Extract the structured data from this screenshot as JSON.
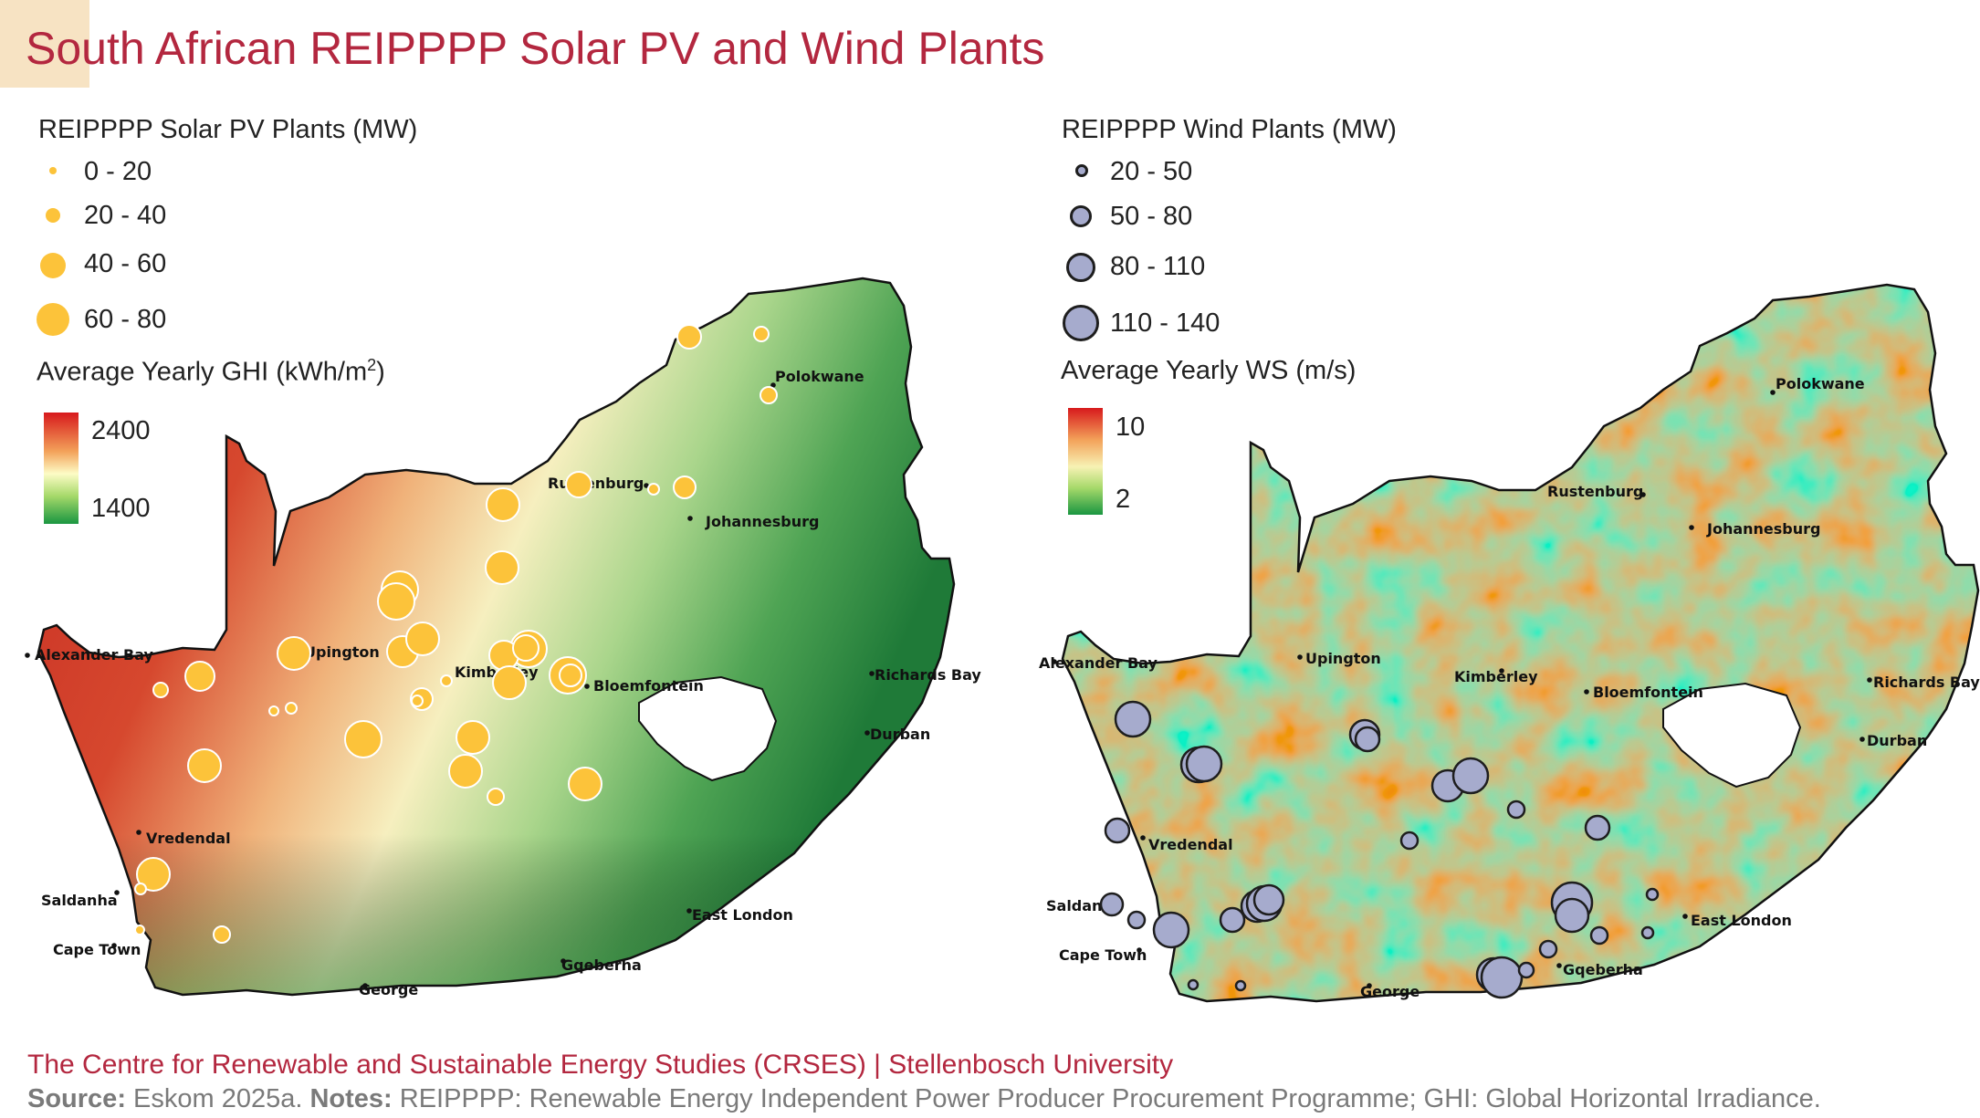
{
  "title": "South African REIPPPP Solar PV and Wind Plants",
  "solar_map": {
    "plants_legend_title": "REIPPPP Solar PV Plants (MW)",
    "size_classes": [
      "0 - 20",
      "20 - 40",
      "40 - 60",
      "60 - 80"
    ],
    "raster_legend_title_main": "Average Yearly GHI (kWh/m",
    "raster_legend_title_sup": "2",
    "raster_legend_title_end": ")",
    "raster_max": "2400",
    "raster_min": "1400",
    "symbol_color": "#fcc33a",
    "cities": [
      "Polokwane",
      "Rustenburg",
      "Johannesburg",
      "Upington",
      "Kimberley",
      "Bloemfontein",
      "Alexander Bay",
      "Richards Bay",
      "Durban",
      "Vredendal",
      "Saldanha",
      "Cape Town",
      "East London",
      "Gqeberha",
      "George"
    ]
  },
  "wind_map": {
    "plants_legend_title": "REIPPPP Wind Plants (MW)",
    "size_classes": [
      "20 - 50",
      "50 - 80",
      "80 - 110",
      "110 - 140"
    ],
    "raster_legend_title": "Average Yearly WS (m/s)",
    "raster_max": "10",
    "raster_min": "2",
    "symbol_color": "#a6abcd",
    "cities": [
      "Polokwane",
      "Rustenburg",
      "Johannesburg",
      "Upington",
      "Kimberley",
      "Bloemfontein",
      "Alexander Bay",
      "Richards Bay",
      "Durban",
      "Vredendal",
      "Saldanha",
      "Cape Town",
      "East London",
      "Gqeberha",
      "George"
    ]
  },
  "footer": {
    "credit": "The Centre for Renewable and Sustainable Energy Studies (CRSES) | Stellenbosch University",
    "source_label": "Source:",
    "source_text": " Eskom 2025a. ",
    "notes_label": "Notes:",
    "notes_text": " REIPPPP: Renewable Energy Independent Power Producer Procurement Programme; GHI: Global Horizontal Irradiance."
  }
}
